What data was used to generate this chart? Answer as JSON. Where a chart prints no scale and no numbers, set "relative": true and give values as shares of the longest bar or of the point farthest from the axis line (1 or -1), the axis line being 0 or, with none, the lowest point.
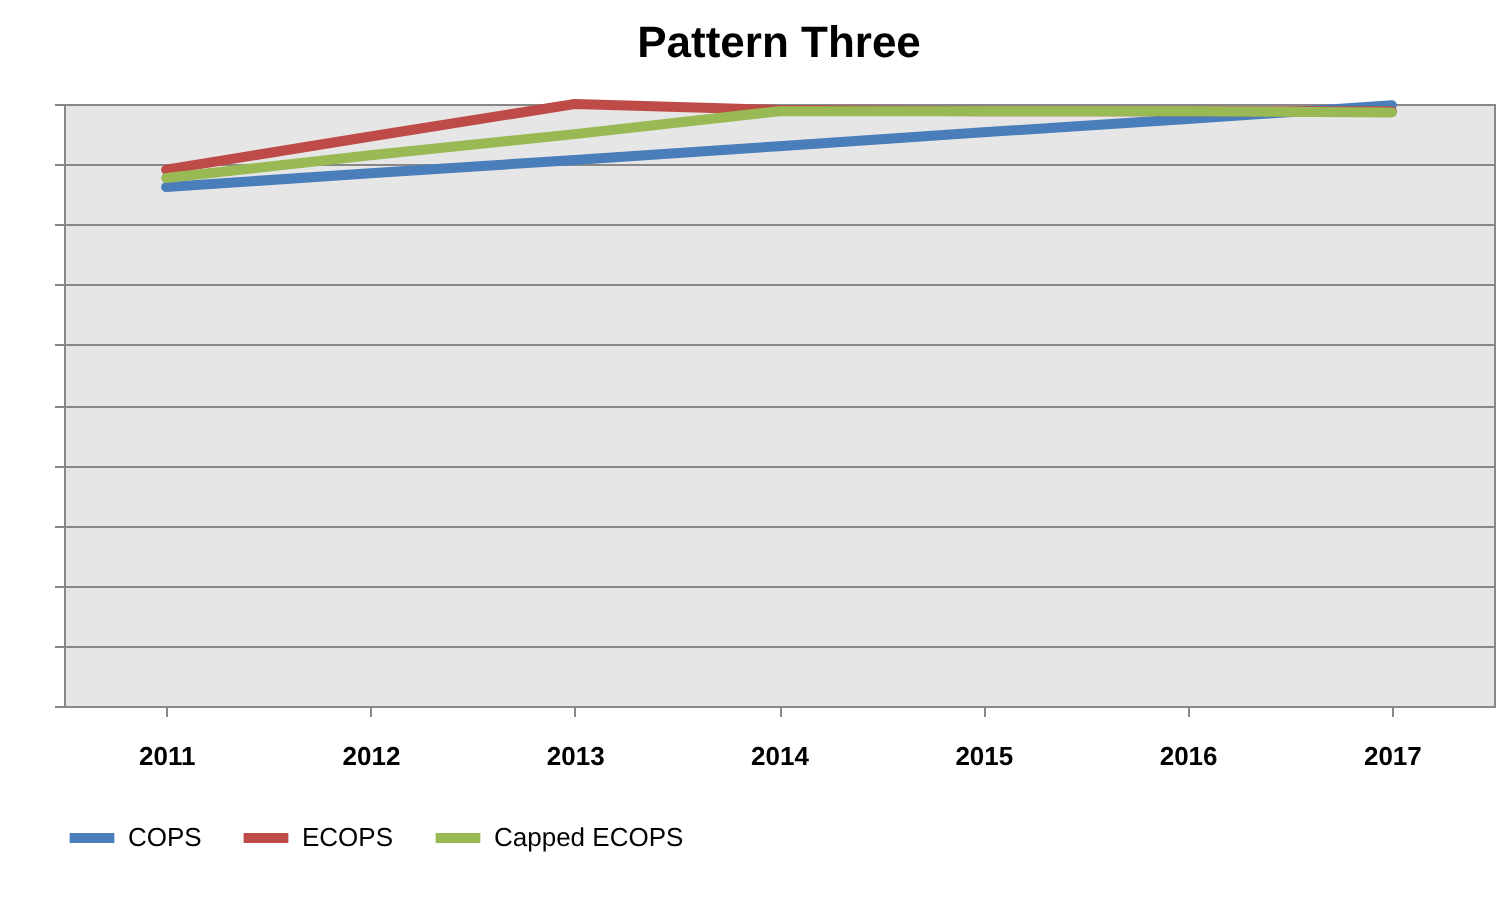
{
  "chart_data": {
    "type": "line",
    "title": "Pattern Three",
    "relative": true,
    "grid": "y",
    "legend": "bottom",
    "line_style": "solid",
    "marker": "none",
    "categories": [
      "2011",
      "2012",
      "2013",
      "2014",
      "2015",
      "2016",
      "2017"
    ],
    "series": [
      {
        "name": "COPS",
        "color": "#4a7ebb",
        "values": [
          0.862,
          0.885,
          0.907,
          0.93,
          0.953,
          0.975,
          0.998
        ]
      },
      {
        "name": "ECOPS",
        "color": "#be4b48",
        "values": [
          0.891,
          0.946,
          1.0,
          0.99,
          0.988,
          0.988,
          0.988
        ]
      },
      {
        "name": "Capped ECOPS",
        "color": "#98b954",
        "values": [
          0.877,
          0.915,
          0.95,
          0.988,
          0.988,
          0.988,
          0.986
        ]
      }
    ]
  }
}
